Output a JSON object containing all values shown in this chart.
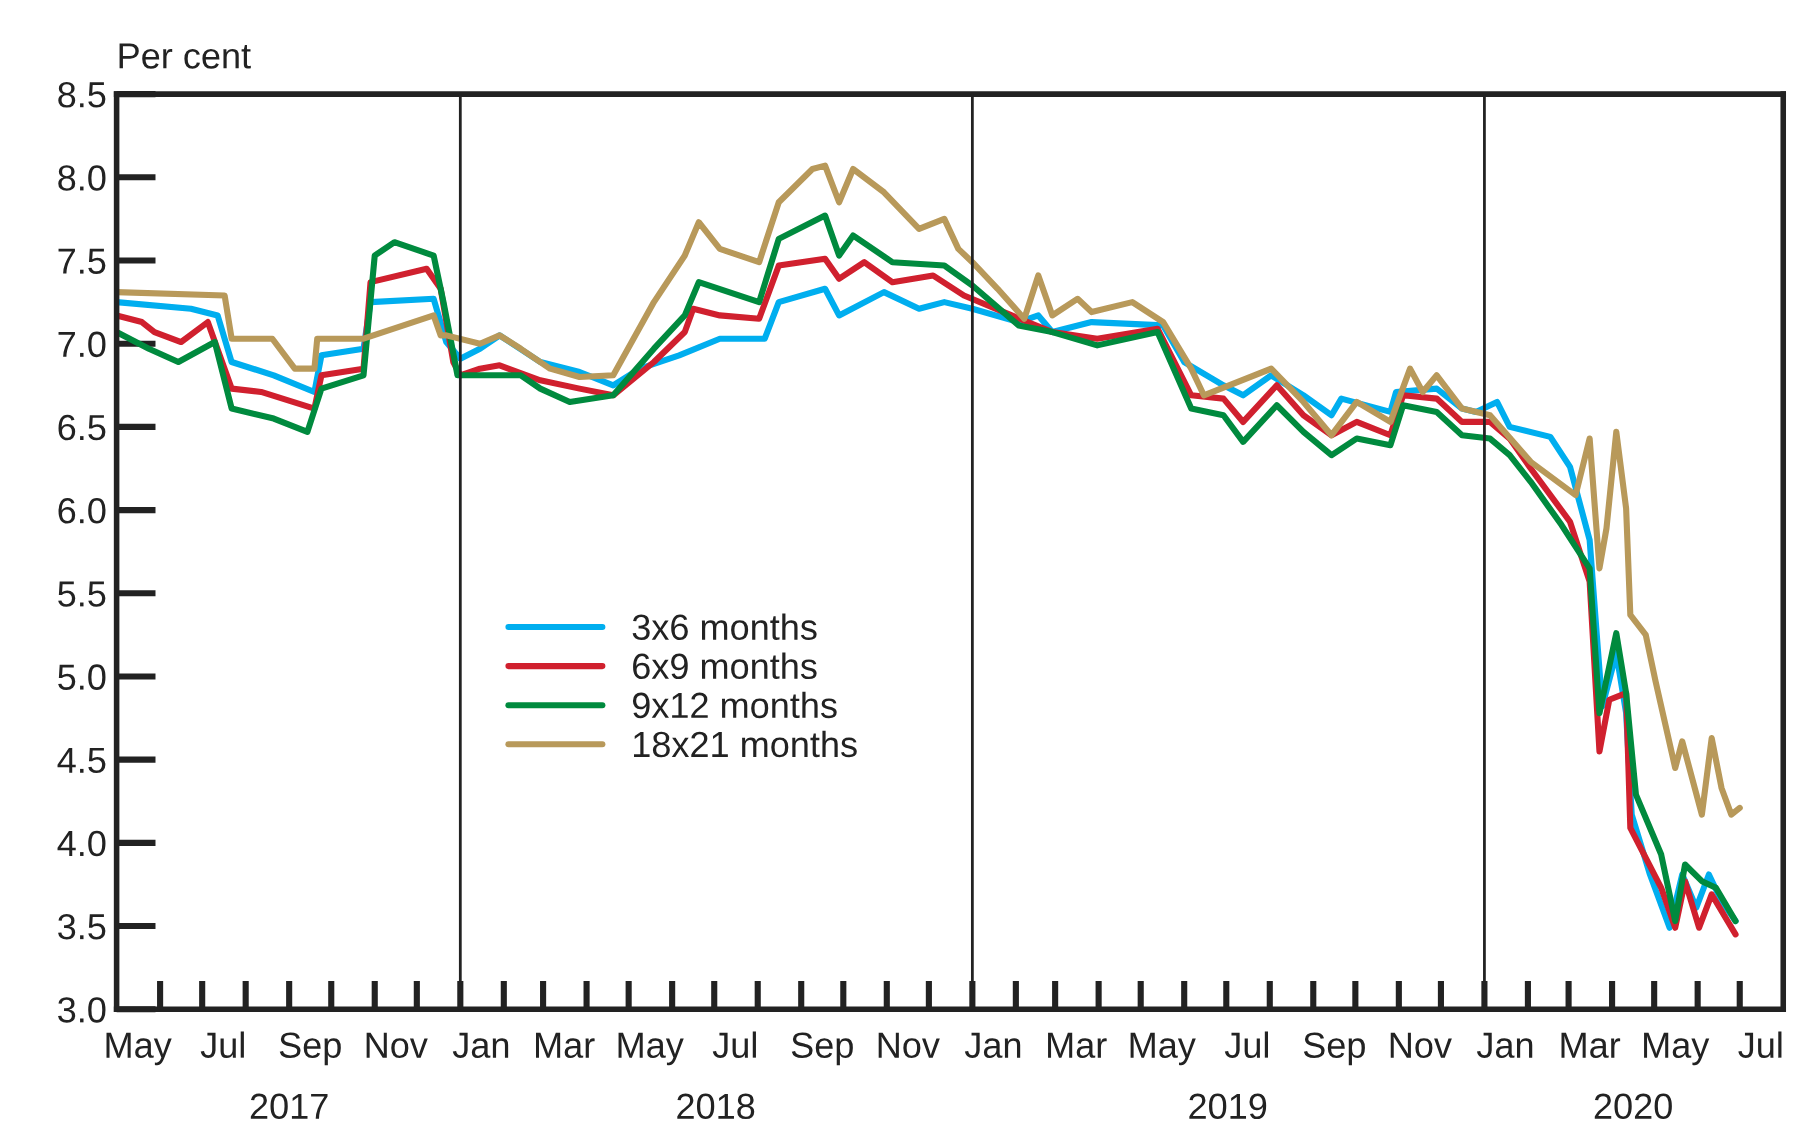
{
  "chart_data": {
    "type": "line",
    "ylabel": "Per cent",
    "xlim": [
      "2017-05-01",
      "2020-08-01"
    ],
    "xticks": [
      {
        "value": "2017-05-16",
        "label": "May"
      },
      {
        "value": "2017-06-01",
        "label": null
      },
      {
        "value": "2017-07-01",
        "label": null
      },
      {
        "value": "2017-07-16",
        "label": "Jul"
      },
      {
        "value": "2017-08-01",
        "label": null
      },
      {
        "value": "2017-09-01",
        "label": null
      },
      {
        "value": "2017-09-16",
        "label": "Sep"
      },
      {
        "value": "2017-10-01",
        "label": null
      },
      {
        "value": "2017-11-01",
        "label": null
      },
      {
        "value": "2017-11-16",
        "label": "Nov"
      },
      {
        "value": "2017-12-01",
        "label": null
      },
      {
        "value": "2018-01-01",
        "label": null
      },
      {
        "value": "2018-01-16",
        "label": "Jan"
      },
      {
        "value": "2018-02-01",
        "label": null
      },
      {
        "value": "2018-03-01",
        "label": null
      },
      {
        "value": "2018-03-16",
        "label": "Mar"
      },
      {
        "value": "2018-04-01",
        "label": null
      },
      {
        "value": "2018-05-01",
        "label": null
      },
      {
        "value": "2018-05-16",
        "label": "May"
      },
      {
        "value": "2018-06-01",
        "label": null
      },
      {
        "value": "2018-07-01",
        "label": null
      },
      {
        "value": "2018-07-16",
        "label": "Jul"
      },
      {
        "value": "2018-08-01",
        "label": null
      },
      {
        "value": "2018-09-01",
        "label": null
      },
      {
        "value": "2018-09-16",
        "label": "Sep"
      },
      {
        "value": "2018-10-01",
        "label": null
      },
      {
        "value": "2018-11-01",
        "label": null
      },
      {
        "value": "2018-11-16",
        "label": "Nov"
      },
      {
        "value": "2018-12-01",
        "label": null
      },
      {
        "value": "2019-01-01",
        "label": null
      },
      {
        "value": "2019-01-16",
        "label": "Jan"
      },
      {
        "value": "2019-02-01",
        "label": null
      },
      {
        "value": "2019-03-01",
        "label": null
      },
      {
        "value": "2019-03-16",
        "label": "Mar"
      },
      {
        "value": "2019-04-01",
        "label": null
      },
      {
        "value": "2019-05-01",
        "label": null
      },
      {
        "value": "2019-05-16",
        "label": "May"
      },
      {
        "value": "2019-06-01",
        "label": null
      },
      {
        "value": "2019-07-01",
        "label": null
      },
      {
        "value": "2019-07-16",
        "label": "Jul"
      },
      {
        "value": "2019-08-01",
        "label": null
      },
      {
        "value": "2019-09-01",
        "label": null
      },
      {
        "value": "2019-09-16",
        "label": "Sep"
      },
      {
        "value": "2019-10-01",
        "label": null
      },
      {
        "value": "2019-11-01",
        "label": null
      },
      {
        "value": "2019-11-16",
        "label": "Nov"
      },
      {
        "value": "2019-12-01",
        "label": null
      },
      {
        "value": "2020-01-01",
        "label": null
      },
      {
        "value": "2020-01-16",
        "label": "Jan"
      },
      {
        "value": "2020-02-01",
        "label": null
      },
      {
        "value": "2020-03-01",
        "label": null
      },
      {
        "value": "2020-03-16",
        "label": "Mar"
      },
      {
        "value": "2020-04-01",
        "label": null
      },
      {
        "value": "2020-05-01",
        "label": null
      },
      {
        "value": "2020-05-16",
        "label": "May"
      },
      {
        "value": "2020-06-01",
        "label": null
      },
      {
        "value": "2020-07-01",
        "label": null
      },
      {
        "value": "2020-07-16",
        "label": "Jul"
      }
    ],
    "x2lim": [
      "2017-05-01",
      "2020-08-01"
    ],
    "x2ticks": [
      {
        "value": "2017-09-01",
        "label": "2017"
      },
      {
        "value": "2018-07-02",
        "label": "2018"
      },
      {
        "value": "2019-07-02",
        "label": "2019"
      },
      {
        "value": "2020-04-16",
        "label": "2020"
      }
    ],
    "ylim": [
      3.0,
      8.5
    ],
    "yticks": [
      {
        "value": 3.0,
        "label": "3.0"
      },
      {
        "value": 3.5,
        "label": "3.5"
      },
      {
        "value": 4.0,
        "label": "4.0"
      },
      {
        "value": 4.5,
        "label": "4.5"
      },
      {
        "value": 5.0,
        "label": "5.0"
      },
      {
        "value": 5.5,
        "label": "5.5"
      },
      {
        "value": 6.0,
        "label": "6.0"
      },
      {
        "value": 6.5,
        "label": "6.5"
      },
      {
        "value": 7.0,
        "label": "7.0"
      },
      {
        "value": 7.5,
        "label": "7.5"
      },
      {
        "value": 8.0,
        "label": "8.0"
      },
      {
        "value": 8.5,
        "label": "8.5"
      }
    ],
    "ref_lines": [
      {
        "axis": "x",
        "value": "2018-01-01",
        "color": "#222222"
      },
      {
        "axis": "x",
        "value": "2019-01-01",
        "color": "#222222"
      },
      {
        "axis": "x",
        "value": "2020-01-01",
        "color": "#222222"
      }
    ],
    "grid": false,
    "legend": "center",
    "line_style": "solid",
    "marker": "none",
    "series": [
      {
        "name": "3x6 months",
        "color": "#00aeef",
        "x": [
          "2017-05-01",
          "2017-06-23",
          "2017-07-12",
          "2017-07-22",
          "2017-08-21",
          "2017-09-19",
          "2017-09-24",
          "2017-10-24",
          "2017-10-29",
          "2017-12-13",
          "2017-12-22",
          "2018-01-01",
          "2018-01-15",
          "2018-01-29",
          "2018-02-27",
          "2018-03-27",
          "2018-04-20",
          "2018-05-09",
          "2018-06-06",
          "2018-07-05",
          "2018-08-06",
          "2018-08-16",
          "2018-09-18",
          "2018-09-28",
          "2018-10-30",
          "2018-11-24",
          "2018-12-12",
          "2019-01-01",
          "2019-02-03",
          "2019-02-17",
          "2019-02-27",
          "2019-03-27",
          "2019-05-17",
          "2019-06-01",
          "2019-06-29",
          "2019-07-13",
          "2019-08-02",
          "2019-08-25",
          "2019-09-14",
          "2019-09-21",
          "2019-10-26",
          "2019-10-30",
          "2019-11-28",
          "2019-12-16",
          "2019-12-26",
          "2020-01-10",
          "2020-01-19",
          "2020-02-17",
          "2020-03-02",
          "2020-03-16",
          "2020-03-21",
          "2020-03-25",
          "2020-04-04",
          "2020-04-11",
          "2020-04-15",
          "2020-04-28",
          "2020-05-12",
          "2020-05-21",
          "2020-05-31",
          "2020-06-09",
          "2020-06-18",
          "2020-06-28"
        ],
        "values": [
          7.25,
          7.21,
          7.17,
          6.89,
          6.81,
          6.71,
          6.93,
          6.97,
          7.25,
          7.27,
          7.01,
          6.91,
          6.97,
          7.05,
          6.89,
          6.83,
          6.75,
          6.85,
          6.93,
          7.03,
          7.03,
          7.25,
          7.33,
          7.17,
          7.31,
          7.21,
          7.25,
          7.21,
          7.13,
          7.17,
          7.07,
          7.13,
          7.11,
          6.89,
          6.75,
          6.69,
          6.81,
          6.69,
          6.57,
          6.67,
          6.59,
          6.71,
          6.73,
          6.61,
          6.59,
          6.65,
          6.5,
          6.44,
          6.26,
          5.82,
          5.26,
          4.82,
          5.14,
          4.78,
          4.17,
          3.81,
          3.49,
          3.81,
          3.61,
          3.81,
          3.65,
          3.53
        ]
      },
      {
        "name": "6x9 months",
        "color": "#d0202e",
        "x": [
          "2017-05-01",
          "2017-05-19",
          "2017-05-28",
          "2017-06-16",
          "2017-07-05",
          "2017-07-22",
          "2017-08-12",
          "2017-09-19",
          "2017-09-24",
          "2017-10-24",
          "2017-10-29",
          "2017-12-08",
          "2017-12-18",
          "2017-12-27",
          "2018-01-01",
          "2018-01-15",
          "2018-01-29",
          "2018-02-27",
          "2018-03-27",
          "2018-04-20",
          "2018-05-19",
          "2018-06-10",
          "2018-06-16",
          "2018-07-05",
          "2018-08-02",
          "2018-08-16",
          "2018-09-18",
          "2018-09-28",
          "2018-10-16",
          "2018-11-05",
          "2018-12-04",
          "2018-12-26",
          "2019-01-29",
          "2019-02-27",
          "2019-03-31",
          "2019-05-13",
          "2019-06-06",
          "2019-06-29",
          "2019-07-13",
          "2019-08-06",
          "2019-08-25",
          "2019-09-14",
          "2019-10-02",
          "2019-10-26",
          "2019-11-04",
          "2019-11-28",
          "2019-12-16",
          "2020-01-05",
          "2020-01-19",
          "2020-02-03",
          "2020-03-02",
          "2020-03-16",
          "2020-03-23",
          "2020-03-30",
          "2020-04-11",
          "2020-04-14",
          "2020-05-06",
          "2020-05-16",
          "2020-05-23",
          "2020-06-02",
          "2020-06-11",
          "2020-06-28"
        ],
        "values": [
          7.17,
          7.13,
          7.07,
          7.01,
          7.13,
          6.73,
          6.71,
          6.61,
          6.81,
          6.85,
          7.37,
          7.45,
          7.33,
          6.89,
          6.81,
          6.85,
          6.87,
          6.78,
          6.73,
          6.69,
          6.89,
          7.07,
          7.21,
          7.17,
          7.15,
          7.47,
          7.51,
          7.39,
          7.49,
          7.37,
          7.41,
          7.29,
          7.17,
          7.07,
          7.03,
          7.09,
          6.69,
          6.67,
          6.53,
          6.75,
          6.57,
          6.45,
          6.53,
          6.45,
          6.69,
          6.67,
          6.53,
          6.53,
          6.43,
          6.25,
          5.93,
          5.57,
          4.55,
          4.86,
          4.9,
          4.09,
          3.73,
          3.49,
          3.77,
          3.49,
          3.69,
          3.45
        ]
      },
      {
        "name": "9x12 months",
        "color": "#008a3e",
        "x": [
          "2017-05-01",
          "2017-05-24",
          "2017-06-14",
          "2017-07-10",
          "2017-07-22",
          "2017-08-21",
          "2017-09-14",
          "2017-09-24",
          "2017-10-24",
          "2017-11-01",
          "2017-11-15",
          "2017-12-13",
          "2017-12-20",
          "2017-12-30",
          "2018-01-15",
          "2018-02-13",
          "2018-02-27",
          "2018-03-20",
          "2018-04-20",
          "2018-05-19",
          "2018-06-10",
          "2018-06-20",
          "2018-08-02",
          "2018-08-16",
          "2018-09-18",
          "2018-09-28",
          "2018-10-08",
          "2018-11-05",
          "2018-12-12",
          "2019-01-01",
          "2019-02-03",
          "2019-02-27",
          "2019-03-31",
          "2019-05-13",
          "2019-06-06",
          "2019-06-29",
          "2019-07-13",
          "2019-08-06",
          "2019-08-25",
          "2019-09-14",
          "2019-10-02",
          "2019-10-26",
          "2019-11-04",
          "2019-11-28",
          "2019-12-16",
          "2020-01-05",
          "2020-01-19",
          "2020-02-03",
          "2020-02-25",
          "2020-03-16",
          "2020-03-23",
          "2020-04-04",
          "2020-04-11",
          "2020-04-18",
          "2020-05-06",
          "2020-05-16",
          "2020-05-23",
          "2020-06-04",
          "2020-06-14",
          "2020-06-28"
        ],
        "values": [
          7.07,
          6.97,
          6.89,
          7.01,
          6.61,
          6.55,
          6.47,
          6.73,
          6.81,
          7.53,
          7.61,
          7.53,
          7.25,
          6.81,
          6.81,
          6.81,
          6.73,
          6.65,
          6.69,
          6.97,
          7.17,
          7.37,
          7.25,
          7.63,
          7.77,
          7.53,
          7.65,
          7.49,
          7.47,
          7.35,
          7.11,
          7.07,
          6.99,
          7.07,
          6.61,
          6.57,
          6.41,
          6.63,
          6.47,
          6.33,
          6.43,
          6.39,
          6.63,
          6.59,
          6.45,
          6.43,
          6.33,
          6.17,
          5.91,
          5.65,
          4.78,
          5.26,
          4.9,
          4.29,
          3.93,
          3.53,
          3.87,
          3.77,
          3.73,
          3.53
        ]
      },
      {
        "name": "18x21 months",
        "color": "#b8995a",
        "x": [
          "2017-05-01",
          "2017-07-17",
          "2017-07-22",
          "2017-08-20",
          "2017-09-05",
          "2017-09-19",
          "2017-09-21",
          "2017-10-24",
          "2017-12-13",
          "2017-12-18",
          "2017-12-22",
          "2018-01-15",
          "2018-01-29",
          "2018-02-13",
          "2018-03-06",
          "2018-03-27",
          "2018-04-20",
          "2018-05-19",
          "2018-06-10",
          "2018-06-20",
          "2018-07-05",
          "2018-08-02",
          "2018-08-16",
          "2018-09-09",
          "2018-09-18",
          "2018-09-28",
          "2018-10-08",
          "2018-10-30",
          "2018-11-24",
          "2018-12-12",
          "2018-12-22",
          "2019-01-01",
          "2019-01-19",
          "2019-02-07",
          "2019-02-17",
          "2019-02-27",
          "2019-03-17",
          "2019-03-27",
          "2019-04-25",
          "2019-05-17",
          "2019-06-06",
          "2019-06-15",
          "2019-08-02",
          "2019-08-25",
          "2019-09-14",
          "2019-10-02",
          "2019-10-26",
          "2019-11-09",
          "2019-11-18",
          "2019-11-28",
          "2019-12-16",
          "2020-01-05",
          "2020-02-03",
          "2020-03-06",
          "2020-03-16",
          "2020-03-23",
          "2020-03-28",
          "2020-04-04",
          "2020-04-11",
          "2020-04-14",
          "2020-04-25",
          "2020-05-02",
          "2020-05-16",
          "2020-05-21",
          "2020-06-04",
          "2020-06-11",
          "2020-06-18",
          "2020-06-25",
          "2020-07-01"
        ],
        "values": [
          7.31,
          7.29,
          7.03,
          7.03,
          6.85,
          6.85,
          7.03,
          7.03,
          7.17,
          7.05,
          7.05,
          7.0,
          7.05,
          6.97,
          6.85,
          6.8,
          6.81,
          7.25,
          7.53,
          7.73,
          7.57,
          7.49,
          7.85,
          8.05,
          8.07,
          7.85,
          8.05,
          7.91,
          7.69,
          7.75,
          7.57,
          7.49,
          7.33,
          7.15,
          7.41,
          7.17,
          7.27,
          7.19,
          7.25,
          7.13,
          6.85,
          6.69,
          6.85,
          6.65,
          6.45,
          6.65,
          6.53,
          6.85,
          6.71,
          6.81,
          6.61,
          6.57,
          6.29,
          6.09,
          6.43,
          5.65,
          5.89,
          6.47,
          6.01,
          5.37,
          5.25,
          4.97,
          4.45,
          4.61,
          4.17,
          4.63,
          4.33,
          4.17,
          4.21
        ]
      }
    ]
  }
}
